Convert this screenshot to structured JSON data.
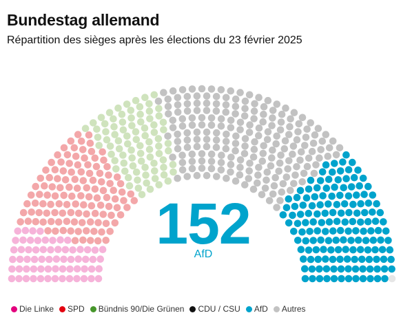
{
  "header": {
    "title": "Bundestag allemand",
    "subtitle": "Répartition des sièges après les élections du 23 février 2025"
  },
  "highlight": {
    "value": "152",
    "label": "AfD",
    "color": "#00a3cc"
  },
  "chart_data": {
    "type": "parliament",
    "title": "Bundestag allemand",
    "subtitle": "Répartition des sièges après les élections du 23 février 2025",
    "total_seats": 630,
    "series": [
      {
        "name": "Die Linke",
        "seats": 64,
        "color": "#e3007d",
        "seat_color": "#f6b3d9"
      },
      {
        "name": "SPD",
        "seats": 120,
        "color": "#e3000f",
        "seat_color": "#f3a7a9"
      },
      {
        "name": "Bündnis 90/Die Grünen",
        "seats": 85,
        "color": "#46962b",
        "seat_color": "#cfe3bd"
      },
      {
        "name": "CDU / CSU",
        "seats": 208,
        "color": "#111111",
        "seat_color": "#c2c2c2"
      },
      {
        "name": "AfD",
        "seats": 152,
        "color": "#00a3cc",
        "seat_color": "#00a3cc"
      },
      {
        "name": "Autres",
        "seats": 1,
        "color": "#c2c2c2",
        "seat_color": "#e6e6e6"
      }
    ],
    "legend_position": "bottom"
  }
}
